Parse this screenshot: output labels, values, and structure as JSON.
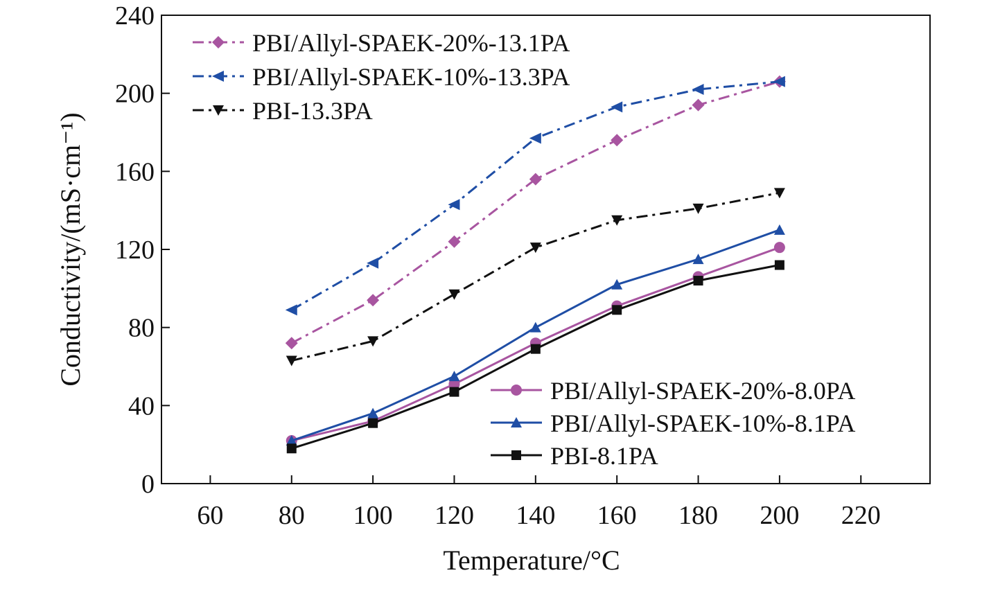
{
  "chart_data": {
    "type": "line",
    "xlabel": "Temperature/°C",
    "ylabel": "Conductivity/(mS·cm⁻¹)",
    "xlim": [
      48,
      237
    ],
    "ylim": [
      0,
      240
    ],
    "xticks": [
      60,
      80,
      100,
      120,
      140,
      160,
      180,
      200,
      220
    ],
    "yticks": [
      0,
      40,
      80,
      120,
      160,
      200,
      240
    ],
    "grid": false,
    "x": [
      80,
      100,
      120,
      140,
      160,
      180,
      200
    ],
    "series": [
      {
        "name": "PBI/Allyl-SPAEK-20%-13.1PA",
        "values": [
          72,
          94,
          124,
          156,
          176,
          194,
          206
        ],
        "color": "#a855a0",
        "dash": "dashdot",
        "marker": "diamond",
        "legend": "top"
      },
      {
        "name": "PBI/Allyl-SPAEK-10%-13.3PA",
        "values": [
          89,
          113,
          143,
          177,
          193,
          202,
          206
        ],
        "color": "#1f4ea5",
        "dash": "dashdot",
        "marker": "triangle-left",
        "legend": "top"
      },
      {
        "name": "PBI-13.3PA",
        "values": [
          63,
          73,
          97,
          121,
          135,
          141,
          149
        ],
        "color": "#111111",
        "dash": "dashdot",
        "marker": "triangle-down",
        "legend": "top"
      },
      {
        "name": "PBI/Allyl-SPAEK-20%-8.0PA",
        "values": [
          22,
          32,
          51,
          72,
          91,
          106,
          121
        ],
        "color": "#a855a0",
        "dash": "solid",
        "marker": "circle",
        "legend": "bottom"
      },
      {
        "name": "PBI/Allyl-SPAEK-10%-8.1PA",
        "values": [
          22,
          36,
          55,
          80,
          102,
          115,
          130
        ],
        "color": "#1f4ea5",
        "dash": "solid",
        "marker": "triangle-up",
        "legend": "bottom"
      },
      {
        "name": "PBI-8.1PA",
        "values": [
          18,
          31,
          47,
          69,
          89,
          104,
          112
        ],
        "color": "#111111",
        "dash": "solid",
        "marker": "square",
        "legend": "bottom"
      }
    ]
  }
}
